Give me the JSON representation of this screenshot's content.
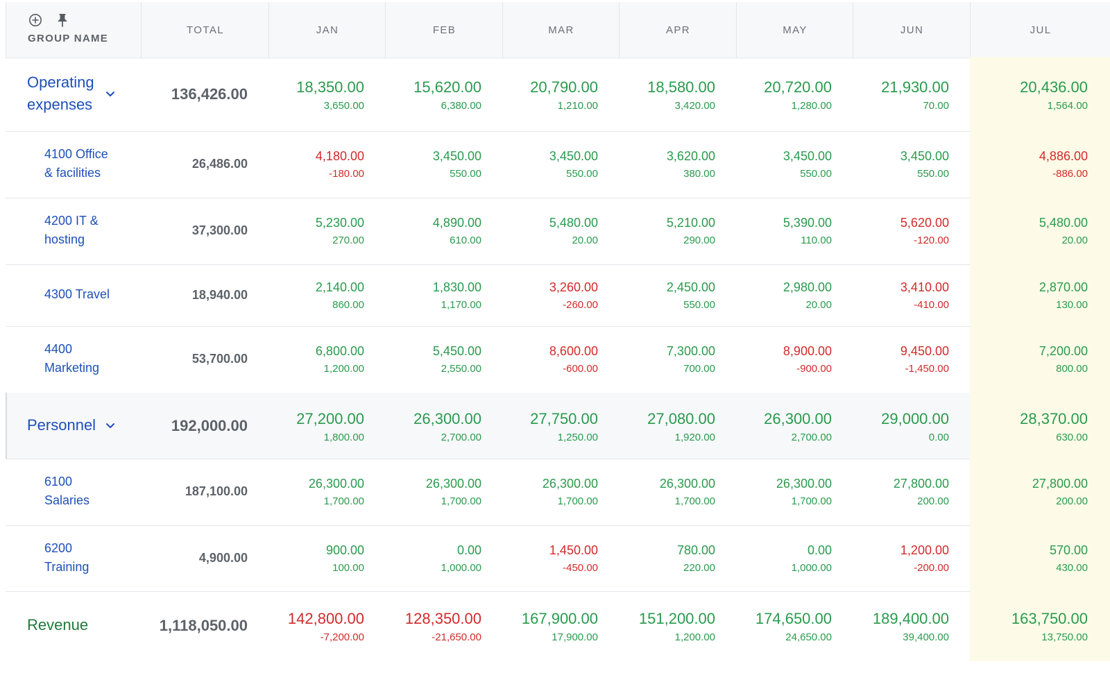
{
  "header": {
    "group_name": "GROUP NAME",
    "columns": [
      "TOTAL",
      "JAN",
      "FEB",
      "MAR",
      "APR",
      "MAY",
      "JUN",
      "JUL"
    ],
    "add_icon": "plus-circle-icon",
    "pin_icon": "pin-icon"
  },
  "rows": [
    {
      "kind": "group",
      "name_lines": [
        "Operating",
        "expenses"
      ],
      "total": "136,426.00",
      "months": [
        {
          "v": "18,350.00",
          "d": "3,650.00",
          "neg": false
        },
        {
          "v": "15,620.00",
          "d": "6,380.00",
          "neg": false
        },
        {
          "v": "20,790.00",
          "d": "1,210.00",
          "neg": false
        },
        {
          "v": "18,580.00",
          "d": "3,420.00",
          "neg": false
        },
        {
          "v": "20,720.00",
          "d": "1,280.00",
          "neg": false
        },
        {
          "v": "21,930.00",
          "d": "70.00",
          "neg": false
        },
        {
          "v": "20,436.00",
          "d": "1,564.00",
          "neg": false
        }
      ]
    },
    {
      "kind": "sub",
      "name_lines": [
        "4100 Office",
        "& facilities"
      ],
      "total": "26,486.00",
      "months": [
        {
          "v": "4,180.00",
          "d": "-180.00",
          "neg": true
        },
        {
          "v": "3,450.00",
          "d": "550.00",
          "neg": false
        },
        {
          "v": "3,450.00",
          "d": "550.00",
          "neg": false
        },
        {
          "v": "3,620.00",
          "d": "380.00",
          "neg": false
        },
        {
          "v": "3,450.00",
          "d": "550.00",
          "neg": false
        },
        {
          "v": "3,450.00",
          "d": "550.00",
          "neg": false
        },
        {
          "v": "4,886.00",
          "d": "-886.00",
          "neg": true
        }
      ]
    },
    {
      "kind": "sub",
      "name_lines": [
        "4200 IT &",
        "hosting"
      ],
      "total": "37,300.00",
      "months": [
        {
          "v": "5,230.00",
          "d": "270.00",
          "neg": false
        },
        {
          "v": "4,890.00",
          "d": "610.00",
          "neg": false
        },
        {
          "v": "5,480.00",
          "d": "20.00",
          "neg": false
        },
        {
          "v": "5,210.00",
          "d": "290.00",
          "neg": false
        },
        {
          "v": "5,390.00",
          "d": "110.00",
          "neg": false
        },
        {
          "v": "5,620.00",
          "d": "-120.00",
          "neg": true
        },
        {
          "v": "5,480.00",
          "d": "20.00",
          "neg": false
        }
      ]
    },
    {
      "kind": "sub",
      "name_lines": [
        "4300 Travel"
      ],
      "total": "18,940.00",
      "months": [
        {
          "v": "2,140.00",
          "d": "860.00",
          "neg": false
        },
        {
          "v": "1,830.00",
          "d": "1,170.00",
          "neg": false
        },
        {
          "v": "3,260.00",
          "d": "-260.00",
          "neg": true
        },
        {
          "v": "2,450.00",
          "d": "550.00",
          "neg": false
        },
        {
          "v": "2,980.00",
          "d": "20.00",
          "neg": false
        },
        {
          "v": "3,410.00",
          "d": "-410.00",
          "neg": true
        },
        {
          "v": "2,870.00",
          "d": "130.00",
          "neg": false
        }
      ]
    },
    {
      "kind": "sub",
      "name_lines": [
        "4400",
        "Marketing"
      ],
      "total": "53,700.00",
      "months": [
        {
          "v": "6,800.00",
          "d": "1,200.00",
          "neg": false
        },
        {
          "v": "5,450.00",
          "d": "2,550.00",
          "neg": false
        },
        {
          "v": "8,600.00",
          "d": "-600.00",
          "neg": true
        },
        {
          "v": "7,300.00",
          "d": "700.00",
          "neg": false
        },
        {
          "v": "8,900.00",
          "d": "-900.00",
          "neg": true
        },
        {
          "v": "9,450.00",
          "d": "-1,450.00",
          "neg": true
        },
        {
          "v": "7,200.00",
          "d": "800.00",
          "neg": false
        }
      ]
    },
    {
      "kind": "group",
      "personnel": true,
      "name_lines": [
        "Personnel"
      ],
      "total": "192,000.00",
      "months": [
        {
          "v": "27,200.00",
          "d": "1,800.00",
          "neg": false
        },
        {
          "v": "26,300.00",
          "d": "2,700.00",
          "neg": false
        },
        {
          "v": "27,750.00",
          "d": "1,250.00",
          "neg": false
        },
        {
          "v": "27,080.00",
          "d": "1,920.00",
          "neg": false
        },
        {
          "v": "26,300.00",
          "d": "2,700.00",
          "neg": false
        },
        {
          "v": "29,000.00",
          "d": "0.00",
          "neg": false
        },
        {
          "v": "28,370.00",
          "d": "630.00",
          "neg": false
        }
      ]
    },
    {
      "kind": "sub",
      "name_lines": [
        "6100",
        "Salaries"
      ],
      "total": "187,100.00",
      "months": [
        {
          "v": "26,300.00",
          "d": "1,700.00",
          "neg": false
        },
        {
          "v": "26,300.00",
          "d": "1,700.00",
          "neg": false
        },
        {
          "v": "26,300.00",
          "d": "1,700.00",
          "neg": false
        },
        {
          "v": "26,300.00",
          "d": "1,700.00",
          "neg": false
        },
        {
          "v": "26,300.00",
          "d": "1,700.00",
          "neg": false
        },
        {
          "v": "27,800.00",
          "d": "200.00",
          "neg": false
        },
        {
          "v": "27,800.00",
          "d": "200.00",
          "neg": false
        }
      ]
    },
    {
      "kind": "sub",
      "name_lines": [
        "6200",
        "Training"
      ],
      "total": "4,900.00",
      "months": [
        {
          "v": "900.00",
          "d": "100.00",
          "neg": false
        },
        {
          "v": "0.00",
          "d": "1,000.00",
          "neg": false
        },
        {
          "v": "1,450.00",
          "d": "-450.00",
          "neg": true
        },
        {
          "v": "780.00",
          "d": "220.00",
          "neg": false
        },
        {
          "v": "0.00",
          "d": "1,000.00",
          "neg": false
        },
        {
          "v": "1,200.00",
          "d": "-200.00",
          "neg": true
        },
        {
          "v": "570.00",
          "d": "430.00",
          "neg": false
        }
      ]
    },
    {
      "kind": "revenue",
      "name_lines": [
        "Revenue"
      ],
      "total": "1,118,050.00",
      "months": [
        {
          "v": "142,800.00",
          "d": "-7,200.00",
          "neg": true
        },
        {
          "v": "128,350.00",
          "d": "-21,650.00",
          "neg": true
        },
        {
          "v": "167,900.00",
          "d": "17,900.00",
          "neg": false
        },
        {
          "v": "151,200.00",
          "d": "1,200.00",
          "neg": false
        },
        {
          "v": "174,650.00",
          "d": "24,650.00",
          "neg": false
        },
        {
          "v": "189,400.00",
          "d": "39,400.00",
          "neg": false
        },
        {
          "v": "163,750.00",
          "d": "13,750.00",
          "neg": false
        }
      ]
    }
  ],
  "colors": {
    "positive": "#2a9a4d",
    "negative": "#d22a2a",
    "link": "#1d4fb8",
    "revenue_label": "#1f7a3b",
    "highlight_column": "#fdfbe8"
  }
}
